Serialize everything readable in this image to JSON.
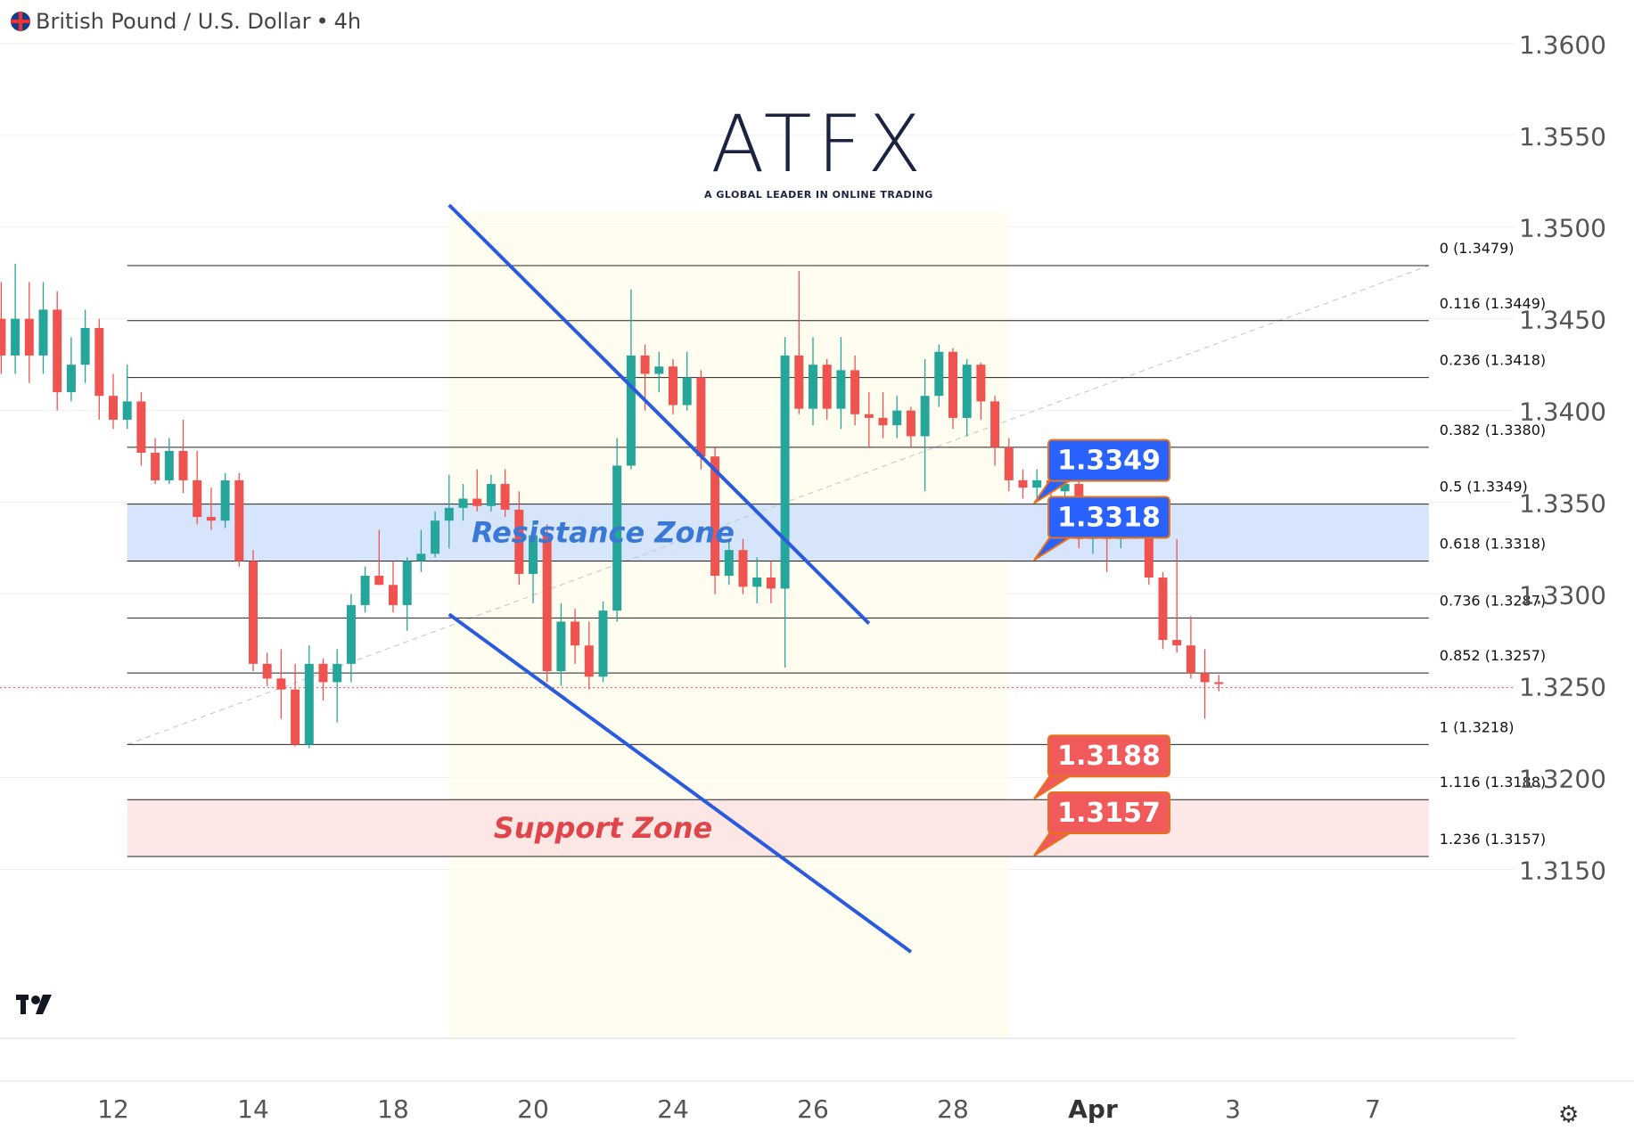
{
  "header": {
    "symbol_label": "British Pound / U.S. Dollar",
    "separator": " • ",
    "timeframe": "4h"
  },
  "logo": {
    "text": "ATFX",
    "tagline": "A GLOBAL LEADER IN ONLINE TRADING"
  },
  "icons": {
    "flag": "uk-flag-icon",
    "tv": "tradingview-logo-icon",
    "settings": "gear-icon"
  },
  "colors": {
    "up": "#26a69a",
    "down": "#ef5350",
    "channel": "#2a5ae0",
    "resistance_fill": "#cfe0fb",
    "support_fill": "#fde3e3",
    "callout_blue": "#2962ff",
    "callout_red": "#f15a5a",
    "callout_border": "#e8731a"
  },
  "chart_data": {
    "type": "candlestick",
    "title": "British Pound / U.S. Dollar • 4h",
    "ylim": [
      1.3107,
      1.3614
    ],
    "y_ticks": [
      "1.3600",
      "1.3550",
      "1.3500",
      "1.3450",
      "1.3400",
      "1.3350",
      "1.3300",
      "1.3250",
      "1.3200",
      "1.3150"
    ],
    "x_ticks": [
      {
        "label": "12",
        "day": 12
      },
      {
        "label": "14",
        "day": 14
      },
      {
        "label": "18",
        "day": 16
      },
      {
        "label": "20",
        "day": 18
      },
      {
        "label": "24",
        "day": 20
      },
      {
        "label": "26",
        "day": 22
      },
      {
        "label": "28",
        "day": 24
      },
      {
        "label": "Apr",
        "day": 26
      },
      {
        "label": "3",
        "day": 28
      },
      {
        "label": "7",
        "day": 30
      }
    ],
    "current_price": 1.3249,
    "fib_levels": [
      {
        "ratio": "0",
        "price": 1.3479,
        "label": "0 (1.3479)"
      },
      {
        "ratio": "0.116",
        "price": 1.3449,
        "label": "0.116 (1.3449)"
      },
      {
        "ratio": "0.236",
        "price": 1.3418,
        "label": "0.236 (1.3418)"
      },
      {
        "ratio": "0.382",
        "price": 1.338,
        "label": "0.382 (1.3380)"
      },
      {
        "ratio": "0.5",
        "price": 1.3349,
        "label": "0.5 (1.3349)"
      },
      {
        "ratio": "0.618",
        "price": 1.3318,
        "label": "0.618 (1.3318)"
      },
      {
        "ratio": "0.736",
        "price": 1.3287,
        "label": "0.736 (1.3287)"
      },
      {
        "ratio": "0.852",
        "price": 1.3257,
        "label": "0.852 (1.3257)"
      },
      {
        "ratio": "1",
        "price": 1.3218,
        "label": "1 (1.3218)"
      },
      {
        "ratio": "1.116",
        "price": 1.3188,
        "label": "1.116 (1.3188)"
      },
      {
        "ratio": "1.236",
        "price": 1.3157,
        "label": "1.236 (1.3157)"
      }
    ],
    "zones": [
      {
        "label": "Resistance Zone",
        "from": 1.3318,
        "to": 1.3349,
        "kind": "resistance"
      },
      {
        "label": "Support Zone",
        "from": 1.3157,
        "to": 1.3188,
        "kind": "support"
      }
    ],
    "callouts": [
      {
        "text": "1.3349",
        "price": 1.3349,
        "kind": "resistance"
      },
      {
        "text": "1.3318",
        "price": 1.3318,
        "kind": "resistance"
      },
      {
        "text": "1.3188",
        "price": 1.3188,
        "kind": "support"
      },
      {
        "text": "1.3157",
        "price": 1.3157,
        "kind": "support"
      }
    ],
    "channel": {
      "upper": [
        [
          16.8,
          1.3512
        ],
        [
          22.8,
          1.3284
        ]
      ],
      "lower": [
        [
          16.8,
          1.3289
        ],
        [
          23.4,
          1.3105
        ]
      ]
    },
    "candles": [
      [
        10.4,
        1.345,
        1.343,
        1.347,
        1.342
      ],
      [
        10.6,
        1.343,
        1.345,
        1.348,
        1.342
      ],
      [
        10.8,
        1.345,
        1.343,
        1.347,
        1.3415
      ],
      [
        11.0,
        1.343,
        1.3455,
        1.347,
        1.342
      ],
      [
        11.2,
        1.3455,
        1.341,
        1.3465,
        1.34
      ],
      [
        11.4,
        1.341,
        1.3425,
        1.344,
        1.3405
      ],
      [
        11.6,
        1.3425,
        1.3445,
        1.3455,
        1.3415
      ],
      [
        11.8,
        1.3445,
        1.3408,
        1.345,
        1.3395
      ],
      [
        12.0,
        1.3408,
        1.3395,
        1.342,
        1.339
      ],
      [
        12.2,
        1.3395,
        1.3405,
        1.3425,
        1.339
      ],
      [
        12.4,
        1.3405,
        1.3377,
        1.341,
        1.337
      ],
      [
        12.6,
        1.3377,
        1.3362,
        1.3385,
        1.336
      ],
      [
        12.8,
        1.3362,
        1.3378,
        1.3385,
        1.336
      ],
      [
        13.0,
        1.3378,
        1.3362,
        1.3395,
        1.3355
      ],
      [
        13.2,
        1.3362,
        1.3342,
        1.3378,
        1.3338
      ],
      [
        13.4,
        1.3342,
        1.334,
        1.3358,
        1.3335
      ],
      [
        13.6,
        1.334,
        1.3362,
        1.3366,
        1.3336
      ],
      [
        13.8,
        1.3362,
        1.3318,
        1.3366,
        1.3315
      ],
      [
        14.0,
        1.3318,
        1.3262,
        1.3324,
        1.3258
      ],
      [
        14.2,
        1.3262,
        1.3254,
        1.3268,
        1.325
      ],
      [
        14.4,
        1.3254,
        1.3248,
        1.327,
        1.3232
      ],
      [
        14.6,
        1.3248,
        1.3218,
        1.3262,
        1.3217
      ],
      [
        14.8,
        1.3218,
        1.3262,
        1.3272,
        1.3216
      ],
      [
        15.0,
        1.3262,
        1.3252,
        1.3265,
        1.3242
      ],
      [
        15.2,
        1.3252,
        1.3262,
        1.327,
        1.323
      ],
      [
        15.4,
        1.3262,
        1.3294,
        1.33,
        1.3252
      ],
      [
        15.6,
        1.3294,
        1.331,
        1.3315,
        1.329
      ],
      [
        15.8,
        1.331,
        1.3305,
        1.3335,
        1.3305
      ],
      [
        16.0,
        1.3305,
        1.3294,
        1.3318,
        1.329
      ],
      [
        16.2,
        1.3294,
        1.3318,
        1.332,
        1.328
      ],
      [
        16.4,
        1.3318,
        1.3322,
        1.3335,
        1.3312
      ],
      [
        16.6,
        1.3322,
        1.334,
        1.3345,
        1.332
      ],
      [
        16.8,
        1.334,
        1.3347,
        1.3365,
        1.3325
      ],
      [
        17.0,
        1.3347,
        1.3352,
        1.336,
        1.334
      ],
      [
        17.2,
        1.3352,
        1.3348,
        1.3368,
        1.3345
      ],
      [
        17.4,
        1.3348,
        1.336,
        1.3365,
        1.3345
      ],
      [
        17.6,
        1.336,
        1.3346,
        1.3368,
        1.3342
      ],
      [
        17.8,
        1.3346,
        1.3311,
        1.3356,
        1.3305
      ],
      [
        18.0,
        1.3311,
        1.3332,
        1.334,
        1.3295
      ],
      [
        18.2,
        1.3332,
        1.3258,
        1.3338,
        1.3252
      ],
      [
        18.4,
        1.3258,
        1.3285,
        1.3295,
        1.325
      ],
      [
        18.6,
        1.3285,
        1.3272,
        1.3292,
        1.3262
      ],
      [
        18.8,
        1.3272,
        1.3255,
        1.3285,
        1.3248
      ],
      [
        19.0,
        1.3255,
        1.3291,
        1.3296,
        1.3252
      ],
      [
        19.2,
        1.3291,
        1.337,
        1.3385,
        1.3285
      ],
      [
        19.4,
        1.337,
        1.343,
        1.3466,
        1.3368
      ],
      [
        19.6,
        1.343,
        1.342,
        1.3436,
        1.34
      ],
      [
        19.8,
        1.342,
        1.3424,
        1.3432,
        1.341
      ],
      [
        20.0,
        1.3424,
        1.3403,
        1.3428,
        1.3398
      ],
      [
        20.2,
        1.3403,
        1.3418,
        1.3432,
        1.34
      ],
      [
        20.4,
        1.3418,
        1.3375,
        1.3422,
        1.3368
      ],
      [
        20.6,
        1.3375,
        1.331,
        1.338,
        1.33
      ],
      [
        20.8,
        1.331,
        1.3324,
        1.333,
        1.3305
      ],
      [
        21.0,
        1.3324,
        1.3304,
        1.333,
        1.33
      ],
      [
        21.2,
        1.3304,
        1.3309,
        1.332,
        1.3295
      ],
      [
        21.4,
        1.3309,
        1.3303,
        1.3318,
        1.3295
      ],
      [
        21.6,
        1.3303,
        1.343,
        1.344,
        1.326
      ],
      [
        21.8,
        1.343,
        1.3401,
        1.3476,
        1.3398
      ],
      [
        22.0,
        1.3401,
        1.3425,
        1.344,
        1.3392
      ],
      [
        22.2,
        1.3425,
        1.3401,
        1.3428,
        1.3395
      ],
      [
        22.4,
        1.3401,
        1.3422,
        1.344,
        1.339
      ],
      [
        22.6,
        1.3422,
        1.3398,
        1.343,
        1.3392
      ],
      [
        22.8,
        1.3398,
        1.3396,
        1.341,
        1.338
      ],
      [
        23.0,
        1.3396,
        1.3392,
        1.341,
        1.3385
      ],
      [
        23.2,
        1.3392,
        1.34,
        1.3408,
        1.3385
      ],
      [
        23.4,
        1.34,
        1.3386,
        1.3402,
        1.338
      ],
      [
        23.6,
        1.3386,
        1.3408,
        1.3428,
        1.3356
      ],
      [
        23.8,
        1.3408,
        1.3432,
        1.3436,
        1.3402
      ],
      [
        24.0,
        1.3432,
        1.3396,
        1.3434,
        1.339
      ],
      [
        24.2,
        1.3396,
        1.3425,
        1.3428,
        1.3386
      ],
      [
        24.4,
        1.3425,
        1.3405,
        1.3426,
        1.3395
      ],
      [
        24.6,
        1.3405,
        1.338,
        1.3408,
        1.337
      ],
      [
        24.8,
        1.338,
        1.3362,
        1.3385,
        1.3356
      ],
      [
        25.0,
        1.3362,
        1.3358,
        1.3368,
        1.3352
      ],
      [
        25.2,
        1.3358,
        1.3362,
        1.3368,
        1.335
      ],
      [
        25.4,
        1.3362,
        1.3356,
        1.3364,
        1.3348
      ],
      [
        25.6,
        1.3356,
        1.336,
        1.3378,
        1.3345
      ],
      [
        25.8,
        1.336,
        1.333,
        1.3362,
        1.3325
      ],
      [
        26.0,
        1.333,
        1.3335,
        1.334,
        1.3322
      ],
      [
        26.2,
        1.3335,
        1.333,
        1.335,
        1.3312
      ],
      [
        26.4,
        1.333,
        1.3334,
        1.334,
        1.3325
      ],
      [
        26.6,
        1.3334,
        1.3344,
        1.3346,
        1.333
      ],
      [
        26.8,
        1.3344,
        1.3309,
        1.3346,
        1.3305
      ],
      [
        27.0,
        1.3309,
        1.3275,
        1.3312,
        1.327
      ],
      [
        27.2,
        1.3275,
        1.3272,
        1.333,
        1.3268
      ],
      [
        27.4,
        1.3272,
        1.3257,
        1.3288,
        1.3254
      ],
      [
        27.6,
        1.3257,
        1.3252,
        1.327,
        1.3232
      ],
      [
        27.8,
        1.3252,
        1.3251,
        1.3256,
        1.3247
      ]
    ]
  }
}
